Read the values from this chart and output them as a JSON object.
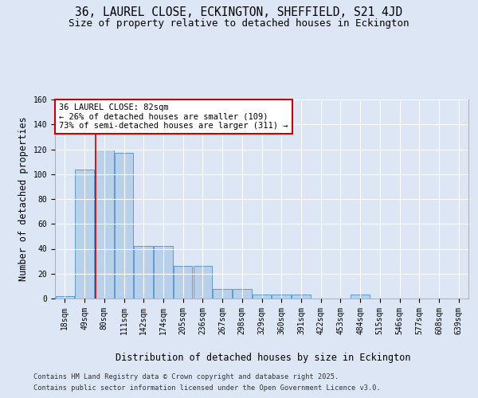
{
  "title_line1": "36, LAUREL CLOSE, ECKINGTON, SHEFFIELD, S21 4JD",
  "title_line2": "Size of property relative to detached houses in Eckington",
  "xlabel": "Distribution of detached houses by size in Eckington",
  "ylabel": "Number of detached properties",
  "annotation_title": "36 LAUREL CLOSE: 82sqm",
  "annotation_line2": "← 26% of detached houses are smaller (109)",
  "annotation_line3": "73% of semi-detached houses are larger (311) →",
  "footer_line1": "Contains HM Land Registry data © Crown copyright and database right 2025.",
  "footer_line2": "Contains public sector information licensed under the Open Government Licence v3.0.",
  "categories": [
    "18sqm",
    "49sqm",
    "80sqm",
    "111sqm",
    "142sqm",
    "174sqm",
    "205sqm",
    "236sqm",
    "267sqm",
    "298sqm",
    "329sqm",
    "360sqm",
    "391sqm",
    "422sqm",
    "453sqm",
    "484sqm",
    "515sqm",
    "546sqm",
    "577sqm",
    "608sqm",
    "639sqm"
  ],
  "values": [
    2,
    104,
    120,
    117,
    42,
    42,
    26,
    26,
    8,
    8,
    3,
    3,
    3,
    0,
    0,
    3,
    0,
    0,
    0,
    0,
    0
  ],
  "bar_color": "#b8d0ea",
  "bar_edge_color": "#5b9bd5",
  "vline_color": "#cc0000",
  "vline_pos": 1.56,
  "ylim": [
    0,
    160
  ],
  "yticks": [
    0,
    20,
    40,
    60,
    80,
    100,
    120,
    140,
    160
  ],
  "bg_color": "#dce6f5",
  "plot_bg_color": "#dce6f5",
  "grid_color": "#ffffff",
  "annotation_box_edgecolor": "#cc0000",
  "title_fontsize": 10.5,
  "subtitle_fontsize": 9,
  "axis_label_fontsize": 8.5,
  "tick_fontsize": 7,
  "annotation_fontsize": 7.5,
  "footer_fontsize": 6.2
}
